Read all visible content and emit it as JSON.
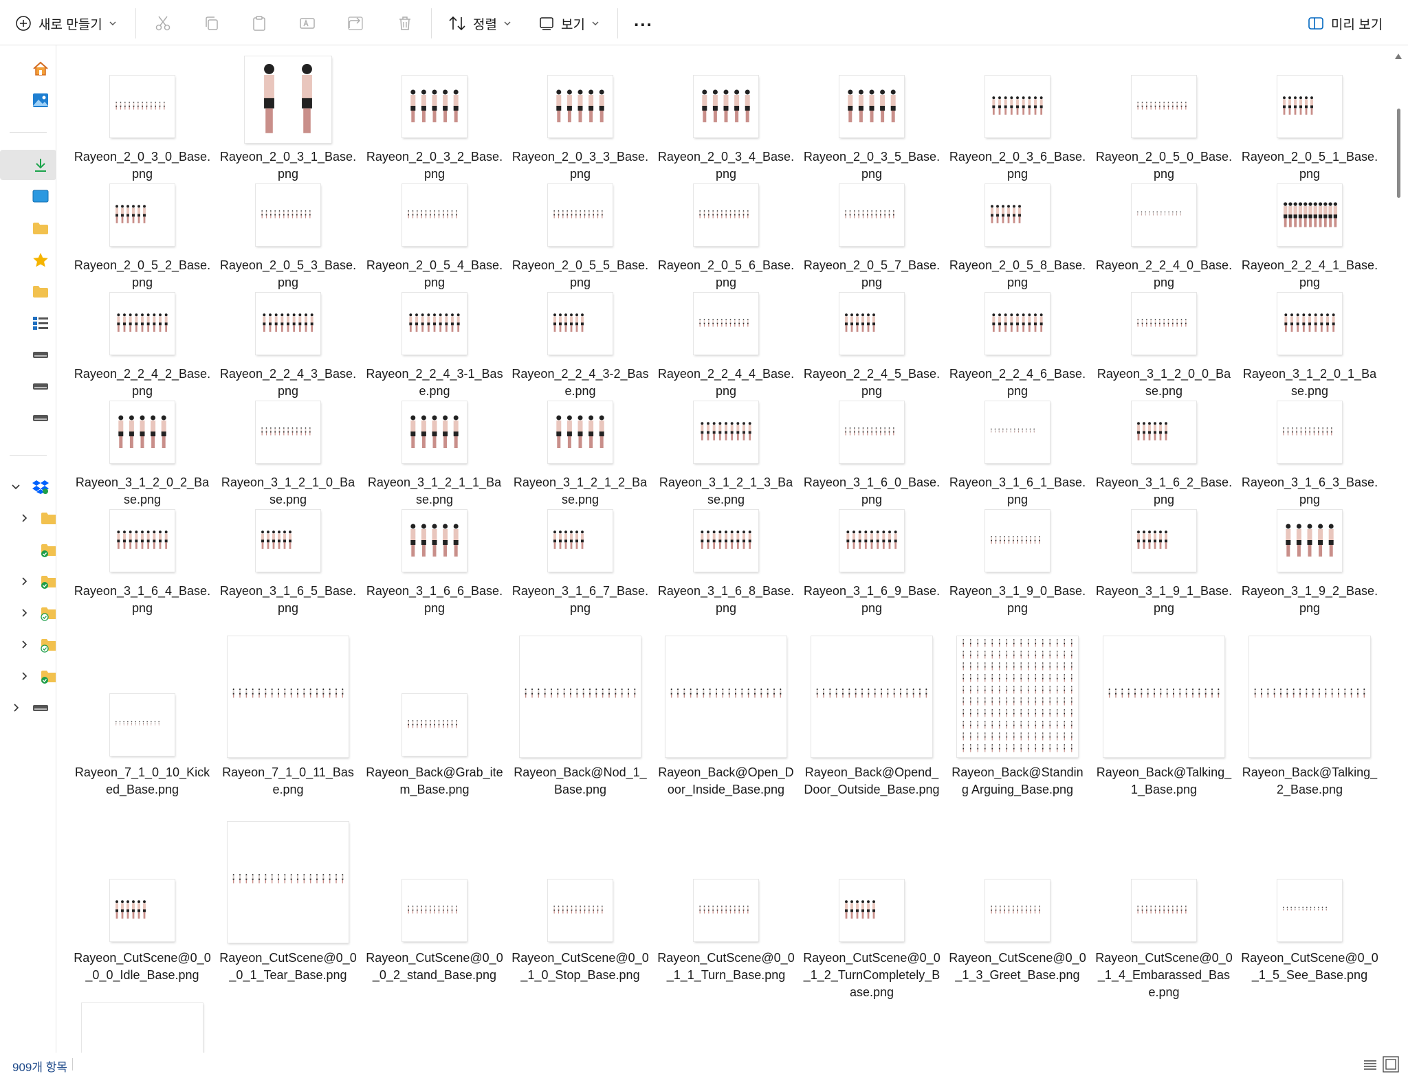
{
  "toolbar": {
    "new_label": "새로 만들기",
    "sort_label": "정렬",
    "view_label": "보기",
    "more_label": "...",
    "preview_label": "미리 보기"
  },
  "colors": {
    "accent": "#0067c0",
    "folder": "#f2c14e",
    "sync_green": "#1e9e4a"
  },
  "files": [
    {
      "name": "Rayeon_2_0_3_0_Base.png",
      "thumb": "small-row-faint"
    },
    {
      "name": "Rayeon_2_0_3_1_Base.png",
      "thumb": "two-figures-large"
    },
    {
      "name": "Rayeon_2_0_3_2_Base.png",
      "thumb": "five-figures"
    },
    {
      "name": "Rayeon_2_0_3_3_Base.png",
      "thumb": "five-figures"
    },
    {
      "name": "Rayeon_2_0_3_4_Base.png",
      "thumb": "five-figures"
    },
    {
      "name": "Rayeon_2_0_3_5_Base.png",
      "thumb": "five-figures"
    },
    {
      "name": "Rayeon_2_0_3_6_Base.png",
      "thumb": "many-figures"
    },
    {
      "name": "Rayeon_2_0_5_0_Base.png",
      "thumb": "small-row-faint"
    },
    {
      "name": "Rayeon_2_0_5_1_Base.png",
      "thumb": "few-figures"
    },
    {
      "name": "Rayeon_2_0_5_2_Base.png",
      "thumb": "few-figures"
    },
    {
      "name": "Rayeon_2_0_5_3_Base.png",
      "thumb": "small-row-faint"
    },
    {
      "name": "Rayeon_2_0_5_4_Base.png",
      "thumb": "small-row-faint"
    },
    {
      "name": "Rayeon_2_0_5_5_Base.png",
      "thumb": "small-row-faint"
    },
    {
      "name": "Rayeon_2_0_5_6_Base.png",
      "thumb": "small-row-faint"
    },
    {
      "name": "Rayeon_2_0_5_7_Base.png",
      "thumb": "small-row-faint"
    },
    {
      "name": "Rayeon_2_0_5_8_Base.png",
      "thumb": "few-figures"
    },
    {
      "name": "Rayeon_2_2_4_0_Base.png",
      "thumb": "tiny-row"
    },
    {
      "name": "Rayeon_2_2_4_1_Base.png",
      "thumb": "rising-row"
    },
    {
      "name": "Rayeon_2_2_4_2_Base.png",
      "thumb": "many-figures"
    },
    {
      "name": "Rayeon_2_2_4_3_Base.png",
      "thumb": "many-figures"
    },
    {
      "name": "Rayeon_2_2_4_3-1_Base.png",
      "thumb": "many-figures"
    },
    {
      "name": "Rayeon_2_2_4_3-2_Base.png",
      "thumb": "few-figures"
    },
    {
      "name": "Rayeon_2_2_4_4_Base.png",
      "thumb": "small-row-faint"
    },
    {
      "name": "Rayeon_2_2_4_5_Base.png",
      "thumb": "few-figures"
    },
    {
      "name": "Rayeon_2_2_4_6_Base.png",
      "thumb": "many-figures"
    },
    {
      "name": "Rayeon_3_1_2_0_0_Base.png",
      "thumb": "small-row-faint"
    },
    {
      "name": "Rayeon_3_1_2_0_1_Base.png",
      "thumb": "many-figures"
    },
    {
      "name": "Rayeon_3_1_2_0_2_Base.png",
      "thumb": "five-figures"
    },
    {
      "name": "Rayeon_3_1_2_1_0_Base.png",
      "thumb": "small-row-faint"
    },
    {
      "name": "Rayeon_3_1_2_1_1_Base.png",
      "thumb": "five-figures"
    },
    {
      "name": "Rayeon_3_1_2_1_2_Base.png",
      "thumb": "five-figures"
    },
    {
      "name": "Rayeon_3_1_2_1_3_Base.png",
      "thumb": "many-figures"
    },
    {
      "name": "Rayeon_3_1_6_0_Base.png",
      "thumb": "small-row-faint"
    },
    {
      "name": "Rayeon_3_1_6_1_Base.png",
      "thumb": "tiny-row"
    },
    {
      "name": "Rayeon_3_1_6_2_Base.png",
      "thumb": "few-figures"
    },
    {
      "name": "Rayeon_3_1_6_3_Base.png",
      "thumb": "small-row-faint"
    },
    {
      "name": "Rayeon_3_1_6_4_Base.png",
      "thumb": "many-figures"
    },
    {
      "name": "Rayeon_3_1_6_5_Base.png",
      "thumb": "few-figures"
    },
    {
      "name": "Rayeon_3_1_6_6_Base.png",
      "thumb": "five-figures"
    },
    {
      "name": "Rayeon_3_1_6_7_Base.png",
      "thumb": "few-figures"
    },
    {
      "name": "Rayeon_3_1_6_8_Base.png",
      "thumb": "many-figures"
    },
    {
      "name": "Rayeon_3_1_6_9_Base.png",
      "thumb": "many-figures"
    },
    {
      "name": "Rayeon_3_1_9_0_Base.png",
      "thumb": "small-row-faint"
    },
    {
      "name": "Rayeon_3_1_9_1_Base.png",
      "thumb": "few-figures"
    },
    {
      "name": "Rayeon_3_1_9_2_Base.png",
      "thumb": "five-figures"
    },
    {
      "name": "Rayeon_7_1_0_10_Kicked_Base.png",
      "thumb": "tiny-row"
    },
    {
      "name": "Rayeon_7_1_0_11_Base.png",
      "thumb": "wide-strip"
    },
    {
      "name": "Rayeon_Back@Grab_item_Base.png",
      "thumb": "small-row-faint"
    },
    {
      "name": "Rayeon_Back@Nod_1_Base.png",
      "thumb": "wide-strip"
    },
    {
      "name": "Rayeon_Back@Open_Door_Inside_Base.png",
      "thumb": "wide-strip"
    },
    {
      "name": "Rayeon_Back@Opend_Door_Outside_Base.png",
      "thumb": "wide-strip"
    },
    {
      "name": "Rayeon_Back@Standing Arguing_Base.png",
      "thumb": "grid"
    },
    {
      "name": "Rayeon_Back@Talking_1_Base.png",
      "thumb": "wide-strip"
    },
    {
      "name": "Rayeon_Back@Talking_2_Base.png",
      "thumb": "wide-strip"
    },
    {
      "name": "Rayeon_CutScene@0_0_0_0_Idle_Base.png",
      "thumb": "few-figures"
    },
    {
      "name": "Rayeon_CutScene@0_0_0_1_Tear_Base.png",
      "thumb": "wide-strip"
    },
    {
      "name": "Rayeon_CutScene@0_0_0_2_stand_Base.png",
      "thumb": "small-row-faint"
    },
    {
      "name": "Rayeon_CutScene@0_0_1_0_Stop_Base.png",
      "thumb": "small-row-faint"
    },
    {
      "name": "Rayeon_CutScene@0_0_1_1_Turn_Base.png",
      "thumb": "small-row-faint"
    },
    {
      "name": "Rayeon_CutScene@0_0_1_2_TurnCompletely_Base.png",
      "thumb": "few-figures"
    },
    {
      "name": "Rayeon_CutScene@0_0_1_3_Greet_Base.png",
      "thumb": "small-row-faint"
    },
    {
      "name": "Rayeon_CutScene@0_0_1_4_Embarassed_Base.png",
      "thumb": "small-row-faint"
    },
    {
      "name": "Rayeon_CutScene@0_0_1_5_See_Base.png",
      "thumb": "tiny-row"
    },
    {
      "name": "",
      "thumb": "wide-strip-partial"
    }
  ],
  "status": {
    "item_count": "909개 항목"
  }
}
